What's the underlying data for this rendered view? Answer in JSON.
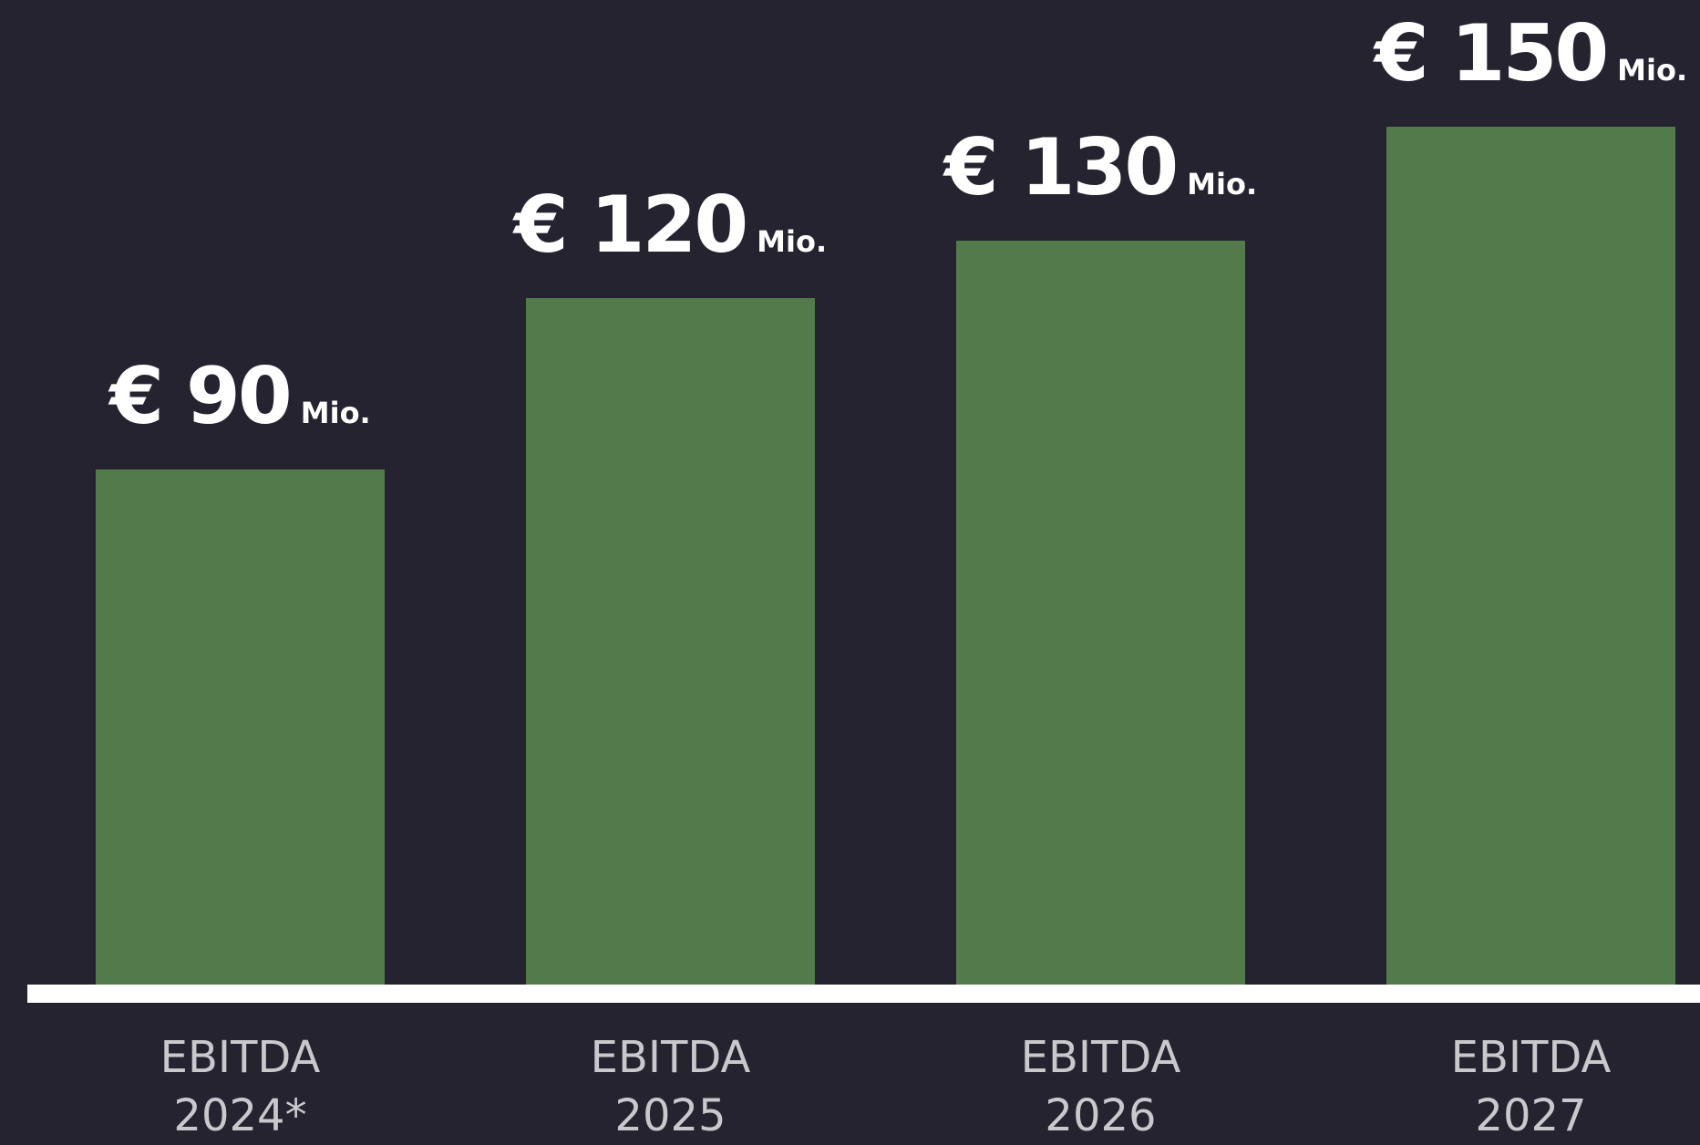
{
  "chart_data": {
    "type": "bar",
    "categories": [
      "EBITDA 2024*",
      "EBITDA 2025",
      "EBITDA 2026",
      "EBITDA 2027"
    ],
    "values": [
      90,
      120,
      130,
      150
    ],
    "value_labels": [
      "€ 90",
      "€ 120",
      "€ 130",
      "€ 150"
    ],
    "unit": "Mio.",
    "color": "#527a4a"
  }
}
